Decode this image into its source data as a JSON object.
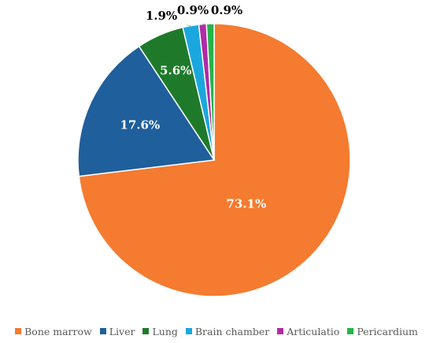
{
  "chart_data": {
    "type": "pie",
    "title": "",
    "categories": [
      "Bone marrow",
      "Liver",
      "Lung",
      "Brain chamber",
      "Articulatio",
      "Pericardium"
    ],
    "values": [
      73.1,
      17.6,
      5.6,
      1.9,
      0.9,
      0.9
    ],
    "labels": [
      "73.1%",
      "17.6%",
      "5.6%",
      "1.9%",
      "0.9%",
      "0.9%"
    ],
    "colors": [
      "#F47B30",
      "#1F5F9B",
      "#1E7A2A",
      "#1BA7DE",
      "#B02BA6",
      "#25B34A"
    ],
    "label_colors": [
      "#FFFFFF",
      "#FFFFFF",
      "#FFFFFF",
      "#000000",
      "#000000",
      "#000000"
    ],
    "legend_position": "bottom"
  }
}
